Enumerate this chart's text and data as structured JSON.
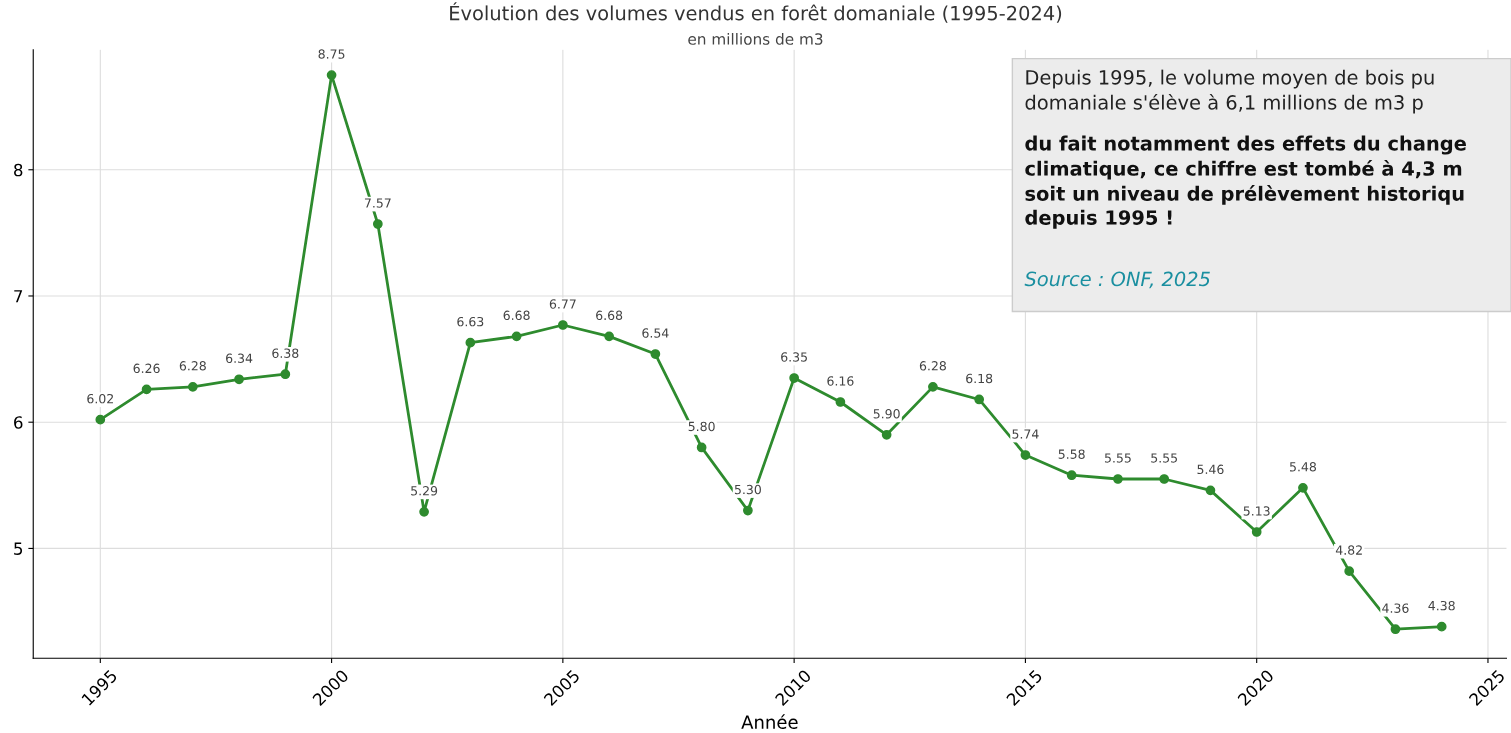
{
  "chart_data": {
    "type": "line",
    "title": "Évolution des volumes vendus en forêt domaniale (1995-2024)",
    "subtitle": "en millions de m3",
    "xlabel": "Année",
    "x": [
      1995,
      1996,
      1997,
      1998,
      1999,
      2000,
      2001,
      2002,
      2003,
      2004,
      2005,
      2006,
      2007,
      2008,
      2009,
      2010,
      2011,
      2012,
      2013,
      2014,
      2015,
      2016,
      2017,
      2018,
      2019,
      2020,
      2021,
      2022,
      2023,
      2024
    ],
    "series": [
      {
        "color": "#2e8b2e",
        "values": [
          6.02,
          6.26,
          6.28,
          6.34,
          6.38,
          8.75,
          7.57,
          5.29,
          6.63,
          6.68,
          6.77,
          6.68,
          6.54,
          5.8,
          5.3,
          6.35,
          6.16,
          5.9,
          6.28,
          6.18,
          5.74,
          5.58,
          5.55,
          5.55,
          5.46,
          5.13,
          5.48,
          4.82,
          4.36,
          4.38
        ],
        "value_labels": [
          "6.02",
          "6.26",
          "6.28",
          "6.34",
          "6.38",
          "8.75",
          "7.57",
          "5.29",
          "6.63",
          "6.68",
          "6.77",
          "6.68",
          "6.54",
          "5.80",
          "5.30",
          "6.35",
          "6.16",
          "5.90",
          "6.28",
          "6.18",
          "5.74",
          "5.58",
          "5.55",
          "5.55",
          "5.46",
          "5.13",
          "5.48",
          "4.82",
          "4.36",
          "4.38"
        ]
      }
    ],
    "xlim": [
      1993.55,
      2025.4
    ],
    "xticks": [
      1995,
      2000,
      2005,
      2010,
      2015,
      2020,
      2025
    ],
    "ylim": [
      4.13,
      8.95
    ],
    "yticks": [
      5,
      6,
      7,
      8
    ],
    "grid": true,
    "marker": "circle",
    "line_style": "solid",
    "annotations": [
      "Depuis 1995, le volume moyen de bois pu\ndomaniale s'élève à 6,1 millions de m3 p",
      "du fait notamment des effets du change\nclimatique, ce chiffre est tombé à 4,3 m\nsoit un niveau de prélèvement historiqu\ndepuis 1995 !",
      "Source : ONF, 2025"
    ]
  }
}
